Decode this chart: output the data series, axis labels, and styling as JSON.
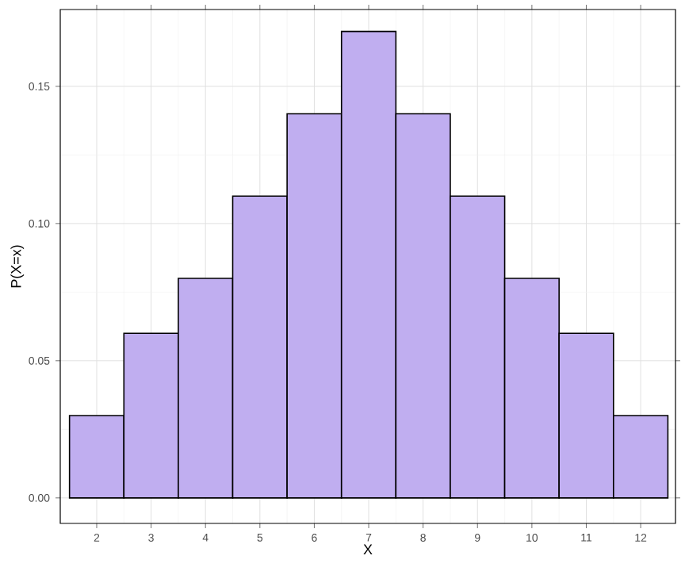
{
  "chart_data": {
    "type": "histogram",
    "xlabel": "X",
    "ylabel": "P(X=x)",
    "bins": [
      1.5,
      2.5,
      3.5,
      4.5,
      5.5,
      6.5,
      7.5,
      8.5,
      9.5,
      10.5,
      11.5,
      12.5
    ],
    "values": [
      0.03,
      0.06,
      0.08,
      0.11,
      0.14,
      0.17,
      0.14,
      0.11,
      0.08,
      0.06,
      0.03
    ],
    "color": "#c0aef0",
    "xlim": [
      1.33,
      12.64
    ],
    "ylim": [
      -0.0093,
      0.178
    ],
    "xticks": [
      2,
      3,
      4,
      5,
      6,
      7,
      8,
      9,
      10,
      11,
      12
    ],
    "yticks": [
      {
        "value": 0,
        "label": "0.00"
      },
      0.05,
      {
        "value": 0.1,
        "label": "0.10"
      },
      0.15
    ],
    "grid": true
  }
}
